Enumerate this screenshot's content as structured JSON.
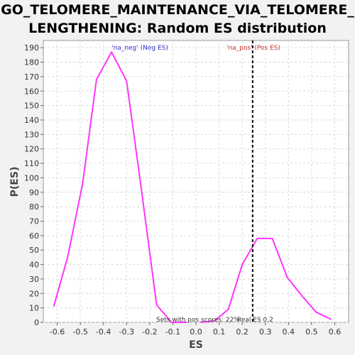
{
  "title_line1": "GO_TELOMERE_MAINTENANCE_VIA_TELOMERE_",
  "title_line2": "LENGTHENING: Random ES distribution",
  "chart_data": {
    "type": "line",
    "title": "GO_TELOMERE_MAINTENANCE_VIA_TELOMERE_LENGTHENING: Random ES distribution",
    "xlabel": "ES",
    "ylabel": "P(ES)",
    "xlim": [
      -0.66,
      0.66
    ],
    "ylim": [
      0,
      195
    ],
    "x_ticks": [
      -0.6,
      -0.5,
      -0.4,
      -0.3,
      -0.2,
      -0.1,
      0.0,
      0.1,
      0.2,
      0.3,
      0.4,
      0.5,
      0.6
    ],
    "x_tick_labels": [
      "-0.6",
      "-0.5",
      "-0.4",
      "-0.3",
      "-0.2",
      "-0.1",
      "0.0",
      "0.1",
      "0.2",
      "0.3",
      "0.4",
      "0.5",
      "0.6"
    ],
    "y_ticks": [
      0,
      10,
      20,
      30,
      40,
      50,
      60,
      70,
      80,
      90,
      100,
      110,
      120,
      130,
      140,
      150,
      160,
      170,
      180,
      190
    ],
    "grid": true,
    "series": [
      {
        "name": "'na_neg' (Neg ES)",
        "color": "#ff33ff",
        "x": [
          -0.615,
          -0.555,
          -0.49,
          -0.43,
          -0.365,
          -0.3,
          -0.235,
          -0.17,
          -0.105,
          -0.04
        ],
        "y": [
          11,
          45,
          96,
          168,
          187,
          167,
          91,
          12,
          0,
          0
        ]
      },
      {
        "name": "'na_pos' (Pos ES)",
        "color": "#ff33ff",
        "x": [
          0.02,
          0.08,
          0.14,
          0.2,
          0.265,
          0.33,
          0.395,
          0.46,
          0.52,
          0.585
        ],
        "y": [
          0,
          1,
          9,
          40,
          58,
          58,
          31,
          18,
          7,
          2
        ]
      }
    ],
    "neg_label": "'na_neg' (Neg ES)",
    "neg_label_color": "#3333cc",
    "pos_label": "'na_pos' (Pos ES)",
    "pos_label_color": "#cc3333",
    "real_es": 0.245,
    "real_es_label": "Real ES 0.2",
    "sets_label": "Sets with pos scores: 22%"
  }
}
